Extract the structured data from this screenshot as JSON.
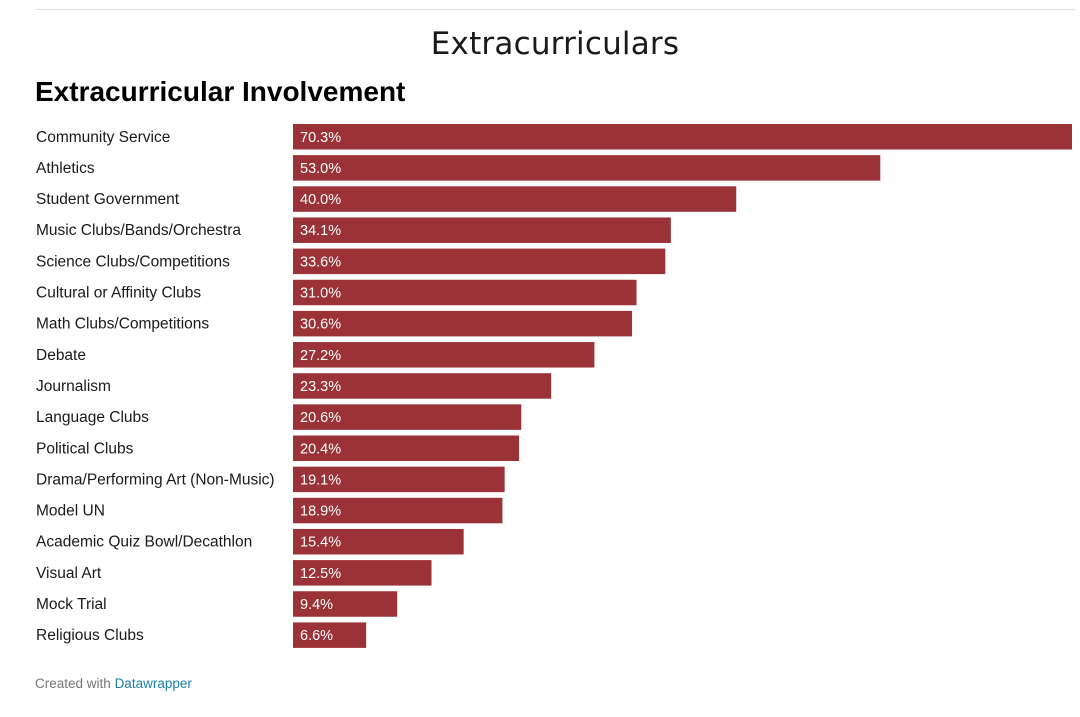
{
  "section_title": "Extracurriculars",
  "footer": {
    "prefix": "Created with",
    "link_text": "Datawrapper"
  },
  "chart_data": {
    "type": "bar",
    "orientation": "horizontal",
    "title": "Extracurricular Involvement",
    "bar_color": "#9a3237",
    "value_label_color": "#ffffff",
    "xlim": [
      0,
      70.3
    ],
    "grid": false,
    "categories": [
      "Community Service",
      "Athletics",
      "Student Government",
      "Music Clubs/Bands/Orchestra",
      "Science Clubs/Competitions",
      "Cultural or Affinity Clubs",
      "Math Clubs/Competitions",
      "Debate",
      "Journalism",
      "Language Clubs",
      "Political Clubs",
      "Drama/Performing Art (Non-Music)",
      "Model UN",
      "Academic Quiz Bowl/Decathlon",
      "Visual Art",
      "Mock Trial",
      "Religious Clubs"
    ],
    "values": [
      70.3,
      53.0,
      40.0,
      34.1,
      33.6,
      31.0,
      30.6,
      27.2,
      23.3,
      20.6,
      20.4,
      19.1,
      18.9,
      15.4,
      12.5,
      9.4,
      6.6
    ],
    "value_labels": [
      "70.3%",
      "53.0%",
      "40.0%",
      "34.1%",
      "33.6%",
      "31.0%",
      "30.6%",
      "27.2%",
      "23.3%",
      "20.6%",
      "20.4%",
      "19.1%",
      "18.9%",
      "15.4%",
      "12.5%",
      "9.4%",
      "6.6%"
    ]
  }
}
